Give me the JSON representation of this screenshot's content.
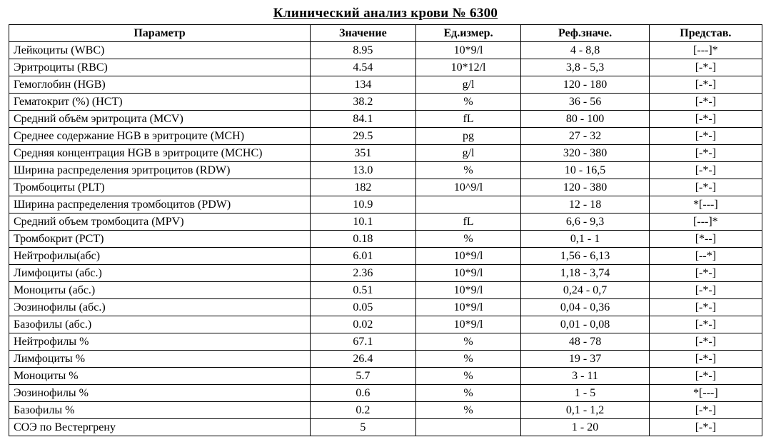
{
  "title": "Клинический анализ крови № 6300",
  "columns": {
    "param": "Параметр",
    "value": "Значение",
    "unit": "Ед.измер.",
    "ref": "Реф.значе.",
    "rep": "Представ."
  },
  "rows": [
    {
      "param": "Лейкоциты (WBC)",
      "value": "8.95",
      "unit": "10*9/l",
      "ref": "4 - 8,8",
      "rep": "[---]*"
    },
    {
      "param": "Эритроциты (RBC)",
      "value": "4.54",
      "unit": "10*12/l",
      "ref": "3,8 - 5,3",
      "rep": "[-*-]"
    },
    {
      "param": "Гемоглобин (HGB)",
      "value": "134",
      "unit": "g/l",
      "ref": "120 - 180",
      "rep": "[-*-]"
    },
    {
      "param": "Гематокрит (%) (HCT)",
      "value": "38.2",
      "unit": "%",
      "ref": "36 - 56",
      "rep": "[-*-]"
    },
    {
      "param": "Средний объём эритроцита (MCV)",
      "value": "84.1",
      "unit": "fL",
      "ref": "80 - 100",
      "rep": "[-*-]"
    },
    {
      "param": "Среднее содержание HGB в эритроците (MCH)",
      "value": "29.5",
      "unit": "pg",
      "ref": "27 - 32",
      "rep": "[-*-]"
    },
    {
      "param": "Средняя концентрация HGB в эритроците (MCHC)",
      "value": "351",
      "unit": "g/l",
      "ref": "320 - 380",
      "rep": "[-*-]"
    },
    {
      "param": "Ширина распределения эритроцитов (RDW)",
      "value": "13.0",
      "unit": "%",
      "ref": "10 - 16,5",
      "rep": "[-*-]"
    },
    {
      "param": "Тромбоциты (PLT)",
      "value": "182",
      "unit": "10^9/l",
      "ref": "120 - 380",
      "rep": "[-*-]"
    },
    {
      "param": "Ширина распределения тромбоцитов (PDW)",
      "value": "10.9",
      "unit": "",
      "ref": "12 - 18",
      "rep": "*[---]"
    },
    {
      "param": "Средний объем тромбоцита (MPV)",
      "value": "10.1",
      "unit": "fL",
      "ref": "6,6 - 9,3",
      "rep": "[---]*"
    },
    {
      "param": "Тромбокрит (PCT)",
      "value": "0.18",
      "unit": "%",
      "ref": "0,1 - 1",
      "rep": "[*--]"
    },
    {
      "param": "Нейтрофилы(абс)",
      "value": "6.01",
      "unit": "10*9/l",
      "ref": "1,56 - 6,13",
      "rep": "[--*]"
    },
    {
      "param": "Лимфоциты (абс.)",
      "value": "2.36",
      "unit": "10*9/l",
      "ref": "1,18 - 3,74",
      "rep": "[-*-]"
    },
    {
      "param": "Моноциты (абс.)",
      "value": "0.51",
      "unit": "10*9/l",
      "ref": "0,24 - 0,7",
      "rep": "[-*-]"
    },
    {
      "param": "Эозинофилы (абс.)",
      "value": "0.05",
      "unit": "10*9/l",
      "ref": "0,04 - 0,36",
      "rep": "[-*-]"
    },
    {
      "param": "Базофилы (абс.)",
      "value": "0.02",
      "unit": "10*9/l",
      "ref": "0,01 - 0,08",
      "rep": "[-*-]"
    },
    {
      "param": "Нейтрофилы %",
      "value": "67.1",
      "unit": "%",
      "ref": "48 - 78",
      "rep": "[-*-]"
    },
    {
      "param": "Лимфоциты %",
      "value": "26.4",
      "unit": "%",
      "ref": "19 - 37",
      "rep": "[-*-]"
    },
    {
      "param": "Моноциты %",
      "value": "5.7",
      "unit": "%",
      "ref": "3 - 11",
      "rep": "[-*-]"
    },
    {
      "param": "Эозинофилы %",
      "value": "0.6",
      "unit": "%",
      "ref": "1 - 5",
      "rep": "*[---]"
    },
    {
      "param": "Базофилы %",
      "value": "0.2",
      "unit": "%",
      "ref": "0,1 - 1,2",
      "rep": "[-*-]"
    },
    {
      "param": "СОЭ по Вестергрену",
      "value": "5",
      "unit": "",
      "ref": "1 - 20",
      "rep": "[-*-]"
    }
  ],
  "style": {
    "font_family": "Times New Roman",
    "title_fontsize": 19,
    "cell_fontsize": 16,
    "border_color": "#000000",
    "background_color": "#ffffff",
    "text_color": "#000000",
    "column_widths_pct": [
      40,
      14,
      14,
      17,
      15
    ]
  }
}
